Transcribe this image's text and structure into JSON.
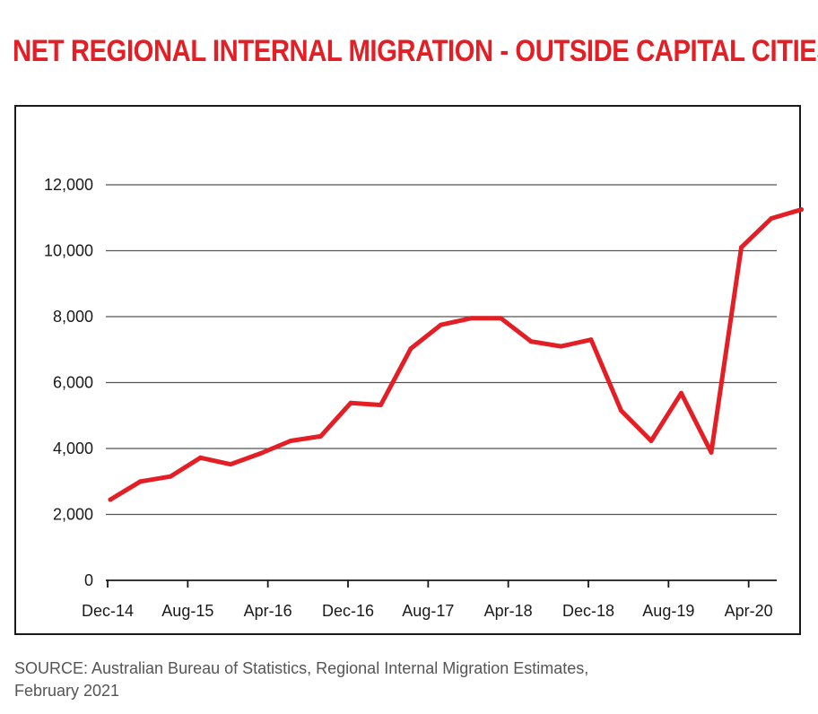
{
  "title": "NET REGIONAL INTERNAL MIGRATION - OUTSIDE CAPITAL CITIES",
  "source_line1": "SOURCE: Australian Bureau of Statistics, Regional Internal Migration Estimates,",
  "source_line2": "February 2021",
  "colors": {
    "title": "#e31e24",
    "series": "#e31e24",
    "grid": "#555555",
    "text": "#1a1a1a",
    "source": "#555555"
  },
  "chart_data": {
    "type": "line",
    "title": "NET REGIONAL INTERNAL MIGRATION - OUTSIDE CAPITAL CITIES",
    "xlabel": "",
    "ylabel": "",
    "ylim": [
      0,
      12000
    ],
    "yticks": [
      0,
      2000,
      4000,
      6000,
      8000,
      10000,
      12000
    ],
    "ytick_labels": [
      "0",
      "2,000",
      "4,000",
      "6,000",
      "8,000",
      "10,000",
      "12,000"
    ],
    "xtick_labels": [
      "Dec-14",
      "Aug-15",
      "Apr-16",
      "Dec-16",
      "Aug-17",
      "Apr-18",
      "Dec-18",
      "Aug-19",
      "Apr-20"
    ],
    "grid": "horizontal",
    "legend": "none",
    "x": [
      "Dec-14",
      "Mar-15",
      "Jun-15",
      "Sep-15",
      "Dec-15",
      "Mar-16",
      "Jun-16",
      "Sep-16",
      "Dec-16",
      "Mar-17",
      "Jun-17",
      "Sep-17",
      "Dec-17",
      "Mar-18",
      "Jun-18",
      "Sep-18",
      "Dec-18",
      "Mar-19",
      "Jun-19",
      "Sep-19",
      "Dec-19",
      "Mar-20",
      "Jun-20",
      "Sep-20"
    ],
    "series": [
      {
        "values": [
          2450,
          3000,
          3150,
          3720,
          3520,
          3850,
          4230,
          4370,
          5380,
          5320,
          7030,
          7750,
          7950,
          7950,
          7250,
          7100,
          7300,
          5150,
          4230,
          5680,
          3880,
          10100,
          10980,
          11250
        ]
      }
    ]
  }
}
